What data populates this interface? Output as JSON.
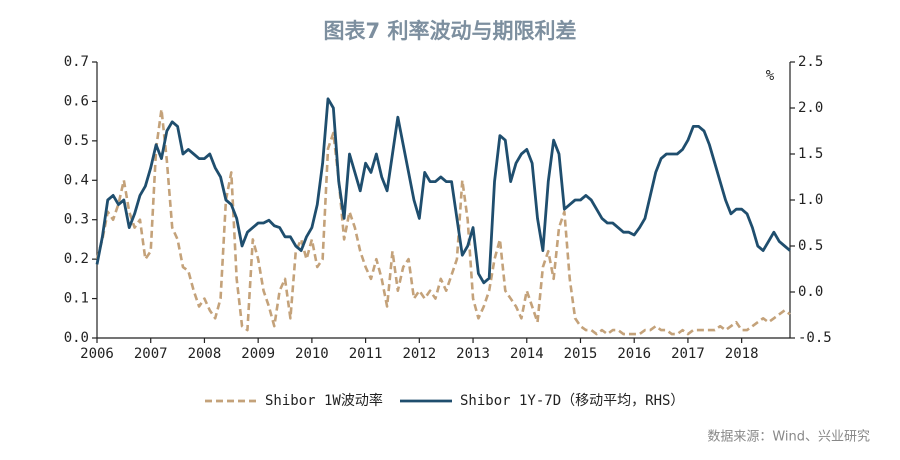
{
  "chart_data": {
    "type": "line",
    "title": "图表7 利率波动与期限利差",
    "y2_label": "%",
    "source": "数据来源：Wind、兴业研究",
    "x": [
      2006.0,
      2006.1,
      2006.2,
      2006.3,
      2006.4,
      2006.5,
      2006.6,
      2006.7,
      2006.8,
      2006.9,
      2007.0,
      2007.1,
      2007.2,
      2007.3,
      2007.4,
      2007.5,
      2007.6,
      2007.7,
      2007.8,
      2007.9,
      2008.0,
      2008.1,
      2008.2,
      2008.3,
      2008.4,
      2008.5,
      2008.6,
      2008.7,
      2008.8,
      2008.9,
      2009.0,
      2009.1,
      2009.2,
      2009.3,
      2009.4,
      2009.5,
      2009.6,
      2009.7,
      2009.8,
      2009.9,
      2010.0,
      2010.1,
      2010.2,
      2010.3,
      2010.4,
      2010.5,
      2010.6,
      2010.7,
      2010.8,
      2010.9,
      2011.0,
      2011.1,
      2011.2,
      2011.3,
      2011.4,
      2011.5,
      2011.6,
      2011.7,
      2011.8,
      2011.9,
      2012.0,
      2012.1,
      2012.2,
      2012.3,
      2012.4,
      2012.5,
      2012.6,
      2012.7,
      2012.8,
      2012.9,
      2013.0,
      2013.1,
      2013.2,
      2013.3,
      2013.4,
      2013.5,
      2013.6,
      2013.7,
      2013.8,
      2013.9,
      2014.0,
      2014.1,
      2014.2,
      2014.3,
      2014.4,
      2014.5,
      2014.6,
      2014.7,
      2014.8,
      2014.9,
      2015.0,
      2015.1,
      2015.2,
      2015.3,
      2015.4,
      2015.5,
      2015.6,
      2015.7,
      2015.8,
      2015.9,
      2016.0,
      2016.1,
      2016.2,
      2016.3,
      2016.4,
      2016.5,
      2016.6,
      2016.7,
      2016.8,
      2016.9,
      2017.0,
      2017.1,
      2017.2,
      2017.3,
      2017.4,
      2017.5,
      2017.6,
      2017.7,
      2017.8,
      2017.9,
      2018.0,
      2018.1,
      2018.2,
      2018.3,
      2018.4,
      2018.5,
      2018.6,
      2018.7,
      2018.8,
      2018.9
    ],
    "series": [
      {
        "name": "Shibor 1W波动率",
        "color": "#c4a27a",
        "style": "dashed",
        "axis": "y",
        "values": [
          0.2,
          0.25,
          0.32,
          0.3,
          0.34,
          0.4,
          0.32,
          0.28,
          0.3,
          0.2,
          0.22,
          0.48,
          0.58,
          0.45,
          0.28,
          0.25,
          0.18,
          0.17,
          0.12,
          0.08,
          0.1,
          0.07,
          0.05,
          0.1,
          0.35,
          0.42,
          0.15,
          0.03,
          0.02,
          0.25,
          0.2,
          0.12,
          0.08,
          0.03,
          0.12,
          0.15,
          0.05,
          0.22,
          0.25,
          0.2,
          0.25,
          0.18,
          0.2,
          0.48,
          0.52,
          0.4,
          0.25,
          0.32,
          0.28,
          0.22,
          0.18,
          0.15,
          0.2,
          0.15,
          0.08,
          0.22,
          0.12,
          0.18,
          0.2,
          0.1,
          0.12,
          0.1,
          0.12,
          0.1,
          0.15,
          0.12,
          0.16,
          0.2,
          0.4,
          0.3,
          0.1,
          0.05,
          0.08,
          0.12,
          0.2,
          0.25,
          0.12,
          0.1,
          0.08,
          0.05,
          0.12,
          0.08,
          0.04,
          0.18,
          0.22,
          0.15,
          0.28,
          0.32,
          0.15,
          0.05,
          0.03,
          0.02,
          0.02,
          0.01,
          0.02,
          0.01,
          0.02,
          0.02,
          0.01,
          0.01,
          0.01,
          0.01,
          0.02,
          0.02,
          0.03,
          0.02,
          0.02,
          0.01,
          0.01,
          0.02,
          0.01,
          0.02,
          0.02,
          0.02,
          0.02,
          0.02,
          0.03,
          0.02,
          0.03,
          0.04,
          0.02,
          0.02,
          0.03,
          0.04,
          0.05,
          0.04,
          0.05,
          0.06,
          0.07,
          0.06
        ]
      },
      {
        "name": "Shibor 1Y-7D（移动平均，RHS）",
        "color": "#1f4e6e",
        "style": "solid",
        "axis": "y2",
        "values": [
          0.3,
          0.6,
          1.0,
          1.05,
          0.95,
          1.0,
          0.7,
          0.85,
          1.05,
          1.15,
          1.35,
          1.6,
          1.45,
          1.75,
          1.85,
          1.8,
          1.5,
          1.55,
          1.5,
          1.45,
          1.45,
          1.5,
          1.35,
          1.25,
          1.0,
          0.95,
          0.8,
          0.5,
          0.65,
          0.7,
          0.75,
          0.75,
          0.78,
          0.72,
          0.7,
          0.6,
          0.6,
          0.5,
          0.45,
          0.6,
          0.7,
          0.95,
          1.4,
          2.1,
          2.0,
          1.2,
          0.8,
          1.5,
          1.3,
          1.1,
          1.4,
          1.3,
          1.5,
          1.25,
          1.1,
          1.5,
          1.9,
          1.6,
          1.3,
          1.0,
          0.8,
          1.3,
          1.2,
          1.2,
          1.25,
          1.2,
          1.2,
          0.8,
          0.4,
          0.5,
          0.7,
          0.2,
          0.1,
          0.15,
          1.2,
          1.7,
          1.65,
          1.2,
          1.4,
          1.5,
          1.55,
          1.4,
          0.8,
          0.45,
          1.2,
          1.65,
          1.5,
          0.9,
          0.95,
          1.0,
          1.0,
          1.05,
          1.0,
          0.9,
          0.8,
          0.75,
          0.75,
          0.7,
          0.65,
          0.65,
          0.62,
          0.7,
          0.8,
          1.05,
          1.3,
          1.45,
          1.5,
          1.5,
          1.5,
          1.55,
          1.65,
          1.8,
          1.8,
          1.75,
          1.6,
          1.4,
          1.2,
          1.0,
          0.85,
          0.9,
          0.9,
          0.85,
          0.7,
          0.5,
          0.45,
          0.55,
          0.65,
          0.55,
          0.5,
          0.45
        ]
      }
    ],
    "xlim": [
      2006,
      2018.9
    ],
    "xticks": [
      2006,
      2007,
      2008,
      2009,
      2010,
      2011,
      2012,
      2013,
      2014,
      2015,
      2016,
      2017,
      2018
    ],
    "ylim": [
      0,
      0.7
    ],
    "yticks": [
      {
        "value": 0,
        "label": "0.0"
      },
      0.1,
      0.2,
      0.3,
      0.4,
      0.5,
      0.6,
      0.7
    ],
    "y2lim": [
      -0.5,
      2.5
    ],
    "y2ticks": [
      -0.5,
      {
        "value": 0,
        "label": "0.0"
      },
      0.5,
      {
        "value": 1,
        "label": "1.0"
      },
      1.5,
      {
        "value": 2,
        "label": "2.0"
      },
      2.5
    ],
    "legend": "bottom"
  }
}
